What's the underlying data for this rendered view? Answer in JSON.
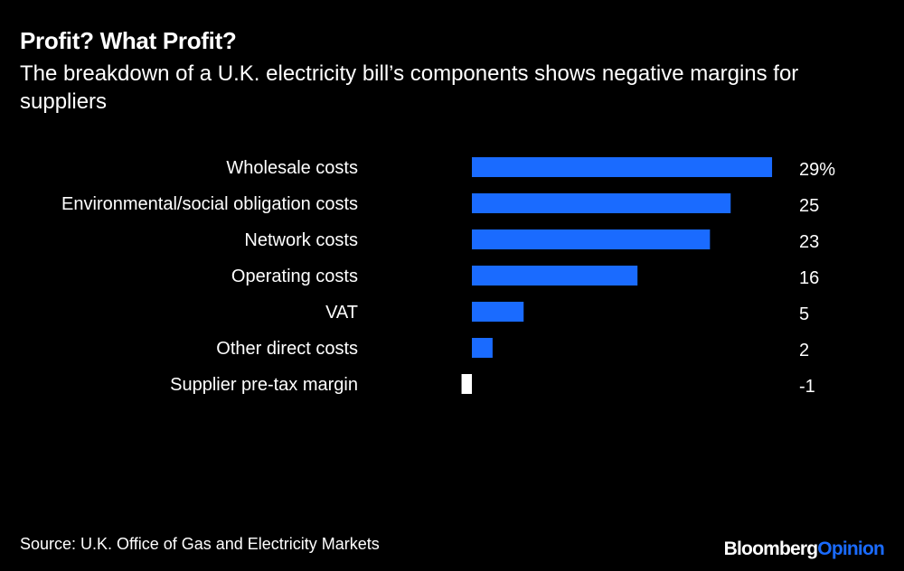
{
  "title": "Profit? What Profit?",
  "subtitle": "The breakdown of a U.K. electricity bill’s components shows negative margins for suppliers",
  "source": "Source: U.K. Office of Gas and Electricity Markets",
  "brand": {
    "part1": "Bloomberg",
    "part2": "Opinion"
  },
  "colors": {
    "background": "#000000",
    "bar_positive": "#1a6bff",
    "bar_negative": "#ffffff",
    "text": "#ffffff"
  },
  "chart_data": {
    "type": "bar",
    "orientation": "horizontal",
    "categories": [
      "Wholesale costs",
      "Environmental/social obligation costs",
      "Network costs",
      "Operating costs",
      "VAT",
      "Other direct costs",
      "Supplier pre-tax margin"
    ],
    "values": [
      29,
      25,
      23,
      16,
      5,
      2,
      -1
    ],
    "value_labels": [
      "29%",
      "25",
      "23",
      "16",
      "5",
      "2",
      "-1"
    ],
    "unit": "%",
    "xlim": [
      -1,
      29
    ]
  }
}
